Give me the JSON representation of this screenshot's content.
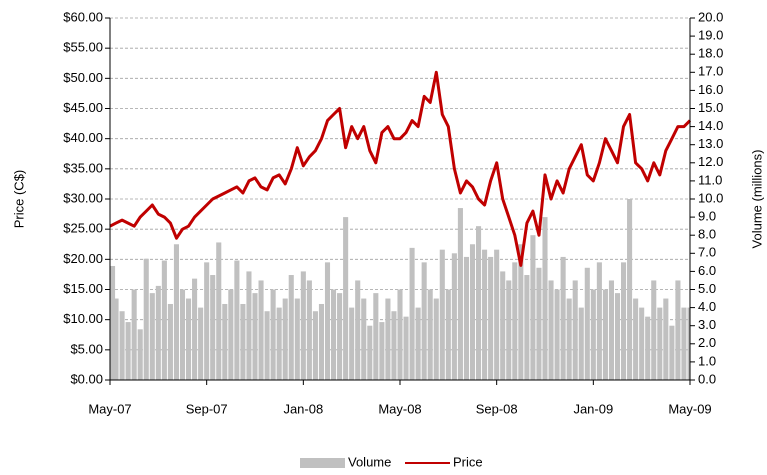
{
  "chart_data": {
    "type": "combo",
    "ylabel": "Price (C$)",
    "y2label": "Volume (millions)",
    "x": [
      0,
      0.25,
      0.5,
      0.75,
      1,
      1.25,
      1.5,
      1.75,
      2,
      2.25,
      2.5,
      2.75,
      3,
      3.25,
      3.5,
      3.75,
      4,
      4.25,
      4.5,
      4.75,
      5,
      5.25,
      5.5,
      5.75,
      6,
      6.25,
      6.5,
      6.75,
      7,
      7.25,
      7.5,
      7.75,
      8,
      8.25,
      8.5,
      8.75,
      9,
      9.25,
      9.5,
      9.75,
      10,
      10.25,
      10.5,
      10.75,
      11,
      11.25,
      11.5,
      11.75,
      12,
      12.25,
      12.5,
      12.75,
      13,
      13.25,
      13.5,
      13.75,
      14,
      14.25,
      14.5,
      14.75,
      15,
      15.25,
      15.5,
      15.75,
      16,
      16.25,
      16.5,
      16.75,
      17,
      17.25,
      17.5,
      17.75,
      18,
      18.25,
      18.5,
      18.75,
      19,
      19.25,
      19.5,
      19.75,
      20,
      20.25,
      20.5,
      20.75,
      21,
      21.25,
      21.5,
      21.75,
      22,
      22.25,
      22.5,
      22.75,
      23,
      23.25,
      23.5,
      23.75,
      24
    ],
    "xlim": [
      0,
      24
    ],
    "xticks": [
      {
        "value": 0,
        "label": "May-07"
      },
      {
        "value": 4,
        "label": "Sep-07"
      },
      {
        "value": 8,
        "label": "Jan-08"
      },
      {
        "value": 12,
        "label": "May-08"
      },
      {
        "value": 16,
        "label": "Sep-08"
      },
      {
        "value": 20,
        "label": "Jan-09"
      },
      {
        "value": 24,
        "label": "May-09"
      }
    ],
    "ylim": [
      0,
      60
    ],
    "yticks": [
      {
        "value": 0,
        "label": "$0.00"
      },
      {
        "value": 5,
        "label": "$5.00"
      },
      {
        "value": 10,
        "label": "$10.00"
      },
      {
        "value": 15,
        "label": "$15.00"
      },
      {
        "value": 20,
        "label": "$20.00"
      },
      {
        "value": 25,
        "label": "$25.00"
      },
      {
        "value": 30,
        "label": "$30.00"
      },
      {
        "value": 35,
        "label": "$35.00"
      },
      {
        "value": 40,
        "label": "$40.00"
      },
      {
        "value": 45,
        "label": "$45.00"
      },
      {
        "value": 50,
        "label": "$50.00"
      },
      {
        "value": 55,
        "label": "$55.00"
      },
      {
        "value": 60,
        "label": "$60.00"
      }
    ],
    "y2lim": [
      0,
      20
    ],
    "y2ticks": [
      {
        "value": 0,
        "label": "0.0"
      },
      {
        "value": 1,
        "label": "1.0"
      },
      {
        "value": 2,
        "label": "2.0"
      },
      {
        "value": 3,
        "label": "3.0"
      },
      {
        "value": 4,
        "label": "4.0"
      },
      {
        "value": 5,
        "label": "5.0"
      },
      {
        "value": 6,
        "label": "6.0"
      },
      {
        "value": 7,
        "label": "7.0"
      },
      {
        "value": 8,
        "label": "8.0"
      },
      {
        "value": 9,
        "label": "9.0"
      },
      {
        "value": 10,
        "label": "10.0"
      },
      {
        "value": 11,
        "label": "11.0"
      },
      {
        "value": 12,
        "label": "12.0"
      },
      {
        "value": 13,
        "label": "13.0"
      },
      {
        "value": 14,
        "label": "14.0"
      },
      {
        "value": 15,
        "label": "15.0"
      },
      {
        "value": 16,
        "label": "16.0"
      },
      {
        "value": 17,
        "label": "17.0"
      },
      {
        "value": 18,
        "label": "18.0"
      },
      {
        "value": 19,
        "label": "19.0"
      },
      {
        "value": 20,
        "label": "20.0"
      }
    ],
    "grid": true,
    "legend": "bottom",
    "series": [
      {
        "name": "Volume",
        "color": "#c0c0c0",
        "axis": "y2",
        "values": [
          6.3,
          4.5,
          3.8,
          3.2,
          5,
          2.8,
          6.7,
          4.8,
          5.2,
          6.6,
          4.2,
          7.5,
          5,
          4.5,
          5.6,
          4,
          6.5,
          5.8,
          7.6,
          4.2,
          5,
          6.6,
          4.2,
          6,
          4.8,
          5.5,
          3.8,
          5,
          4,
          4.5,
          5.8,
          4.5,
          6,
          5.5,
          3.8,
          4.2,
          6.5,
          5,
          4.8,
          9,
          4,
          5.5,
          4.5,
          3,
          4.8,
          3.2,
          4.5,
          3.8,
          5,
          3.5,
          7.3,
          4,
          6.5,
          5,
          4.5,
          7.2,
          5,
          7,
          9.5,
          6.8,
          7.5,
          8.5,
          7.2,
          6.8,
          7.2,
          6,
          5.5,
          6.5,
          7.5,
          5.8,
          8,
          6.2,
          9,
          5.5,
          5,
          6.8,
          4.5,
          5.5,
          4,
          6.2,
          5,
          6.5,
          5,
          5.5,
          4.8,
          6.5,
          10,
          4.5,
          4,
          3.5,
          5.5,
          4,
          4.5,
          3,
          5.5,
          4,
          4
        ]
      },
      {
        "name": "Price",
        "color": "#c00000",
        "axis": "y",
        "values": [
          25.5,
          26,
          26.5,
          26,
          25.5,
          27,
          28,
          29,
          27.5,
          27,
          26,
          23.5,
          25,
          25.5,
          27,
          28,
          29,
          30,
          30.5,
          31,
          31.5,
          32,
          31,
          33,
          33.5,
          32,
          31.5,
          33.5,
          34,
          32.5,
          35,
          38.5,
          35.5,
          37,
          38,
          40,
          43,
          44,
          45,
          38.5,
          42,
          40,
          42,
          38,
          36,
          41,
          42,
          40,
          40,
          41,
          43,
          42,
          47,
          46,
          51,
          44,
          42,
          35,
          31,
          33,
          32,
          30,
          29,
          33,
          36,
          30,
          27,
          24,
          19,
          26,
          28,
          24,
          34,
          30,
          33,
          31,
          35,
          37,
          39,
          34,
          33,
          36,
          40,
          38,
          36,
          42,
          44,
          36,
          35,
          33,
          36,
          34,
          38,
          40,
          42,
          42,
          43
        ]
      }
    ]
  }
}
